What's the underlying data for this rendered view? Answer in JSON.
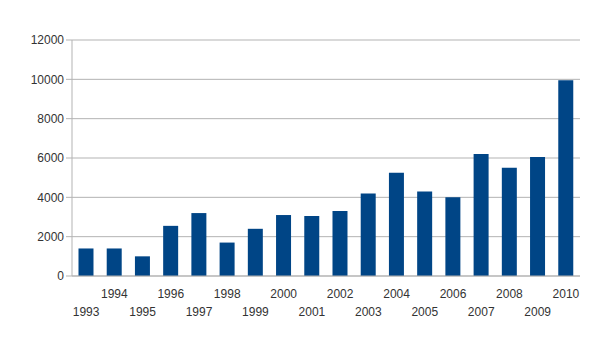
{
  "chart_data": {
    "type": "bar",
    "categories": [
      "1993",
      "1994",
      "1995",
      "1996",
      "1997",
      "1998",
      "1999",
      "2000",
      "2001",
      "2002",
      "2003",
      "2004",
      "2005",
      "2006",
      "2007",
      "2008",
      "2009",
      "2010"
    ],
    "values": [
      1400,
      1400,
      1000,
      2550,
      3200,
      1700,
      2400,
      3100,
      3050,
      3300,
      4200,
      5250,
      4300,
      4000,
      6200,
      5500,
      6050,
      9950
    ],
    "color": "#004586",
    "ylim": [
      0,
      12000
    ],
    "yticks": [
      0,
      2000,
      4000,
      6000,
      8000,
      10000,
      12000
    ],
    "grid": true
  }
}
